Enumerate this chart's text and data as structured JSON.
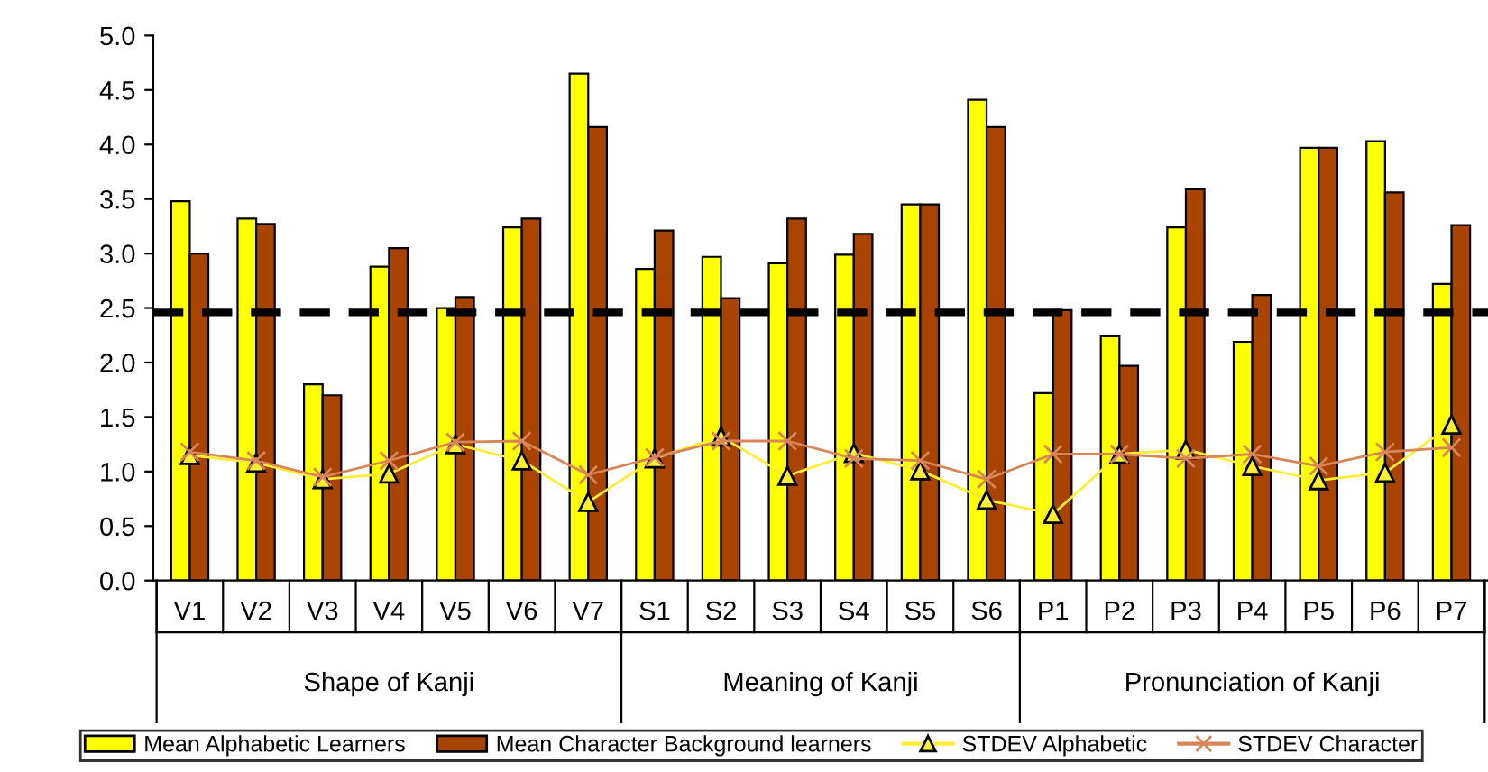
{
  "chart_data": {
    "type": "bar",
    "categories": [
      "V1",
      "V2",
      "V3",
      "V4",
      "V5",
      "V6",
      "V7",
      "S1",
      "S2",
      "S3",
      "S4",
      "S5",
      "S6",
      "P1",
      "P2",
      "P3",
      "P4",
      "P5",
      "P6",
      "P7"
    ],
    "series": [
      {
        "name": "Mean Alphabetic Learners",
        "color": "#ffff00",
        "values": [
          3.48,
          3.32,
          1.8,
          2.88,
          2.5,
          3.24,
          4.65,
          2.86,
          2.97,
          2.91,
          2.99,
          3.45,
          4.41,
          1.72,
          2.24,
          3.24,
          2.19,
          3.97,
          4.03,
          2.72
        ]
      },
      {
        "name": "Mean Character Background learners",
        "color": "#a84300",
        "values": [
          3.0,
          3.27,
          1.7,
          3.05,
          2.6,
          3.32,
          4.16,
          3.21,
          2.59,
          3.32,
          3.18,
          3.45,
          4.16,
          2.48,
          1.97,
          3.59,
          2.62,
          3.97,
          3.56,
          3.26
        ]
      },
      {
        "name": "STDEV Alphabetic",
        "type": "line",
        "marker": "triangle",
        "color": "#ffee33",
        "values": [
          1.15,
          1.08,
          0.93,
          0.98,
          1.25,
          1.1,
          0.72,
          1.12,
          1.32,
          0.96,
          1.17,
          1.01,
          0.74,
          0.61,
          1.16,
          1.2,
          1.05,
          0.92,
          0.99,
          1.43
        ]
      },
      {
        "name": "STDEV Character",
        "type": "line",
        "marker": "cross",
        "color": "#d9855a",
        "values": [
          1.18,
          1.1,
          0.95,
          1.1,
          1.27,
          1.28,
          0.97,
          1.13,
          1.28,
          1.28,
          1.12,
          1.1,
          0.93,
          1.16,
          1.16,
          1.12,
          1.16,
          1.05,
          1.18,
          1.22
        ]
      }
    ],
    "ylim": [
      0,
      5
    ],
    "yticks": [
      {
        "value": 0,
        "label": "0.0"
      },
      0.5,
      {
        "value": 1,
        "label": "1.0"
      },
      1.5,
      {
        "value": 2,
        "label": "2.0"
      },
      2.5,
      {
        "value": 3,
        "label": "3.0"
      },
      3.5,
      {
        "value": 4,
        "label": "4.0"
      },
      4.5,
      {
        "value": 5,
        "label": "5.0"
      }
    ],
    "ref_lines": [
      {
        "axis": "y",
        "value": 2.46,
        "color": "#000000",
        "line_style": "dashed"
      }
    ],
    "annotations": [
      "Shape of Kanji",
      "Meaning of Kanji",
      "Pronunciation of Kanji"
    ],
    "grid": false,
    "legend": "bottom"
  }
}
